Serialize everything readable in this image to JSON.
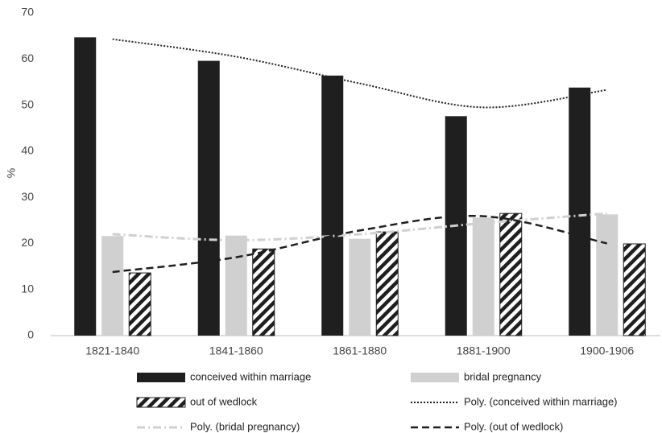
{
  "chart_data": {
    "type": "bar",
    "y_label": "%",
    "categories": [
      "1821-1840",
      "1841-1860",
      "1861-1880",
      "1881-1900",
      "1900-1906"
    ],
    "series": [
      {
        "name": "conceived within marriage",
        "type": "bar",
        "color": "#1f1f1f",
        "values": [
          64.7,
          59.6,
          56.4,
          47.6,
          53.8
        ]
      },
      {
        "name": "bridal pregnancy",
        "type": "bar",
        "color": "#d0d0d0",
        "values": [
          21.6,
          21.7,
          21.0,
          25.6,
          26.3
        ]
      },
      {
        "name": "out of wedlock",
        "type": "bar",
        "color": "#1f1f1f",
        "pattern": "hatch",
        "values": [
          13.6,
          18.8,
          22.5,
          26.5,
          19.9
        ]
      },
      {
        "name": "Poly. (conceived within marriage)",
        "type": "line",
        "color": "#1f1f1f",
        "dash": "dotted",
        "values": [
          64.3,
          60.5,
          54.7,
          49.5,
          53.3
        ]
      },
      {
        "name": "Poly. (bridal pregnancy)",
        "type": "line",
        "color": "#d0d0d0",
        "dash": "dashdot",
        "values": [
          22.0,
          20.7,
          22.0,
          24.4,
          26.5
        ]
      },
      {
        "name": "Poly. (out of wedlock)",
        "type": "line",
        "color": "#1f1f1f",
        "dash": "dashed",
        "values": [
          13.8,
          17.0,
          22.8,
          25.9,
          20.0
        ]
      }
    ],
    "ylim": [
      0,
      70
    ],
    "yticks": [
      0,
      10,
      20,
      30,
      40,
      50,
      60,
      70
    ],
    "grid": false
  }
}
